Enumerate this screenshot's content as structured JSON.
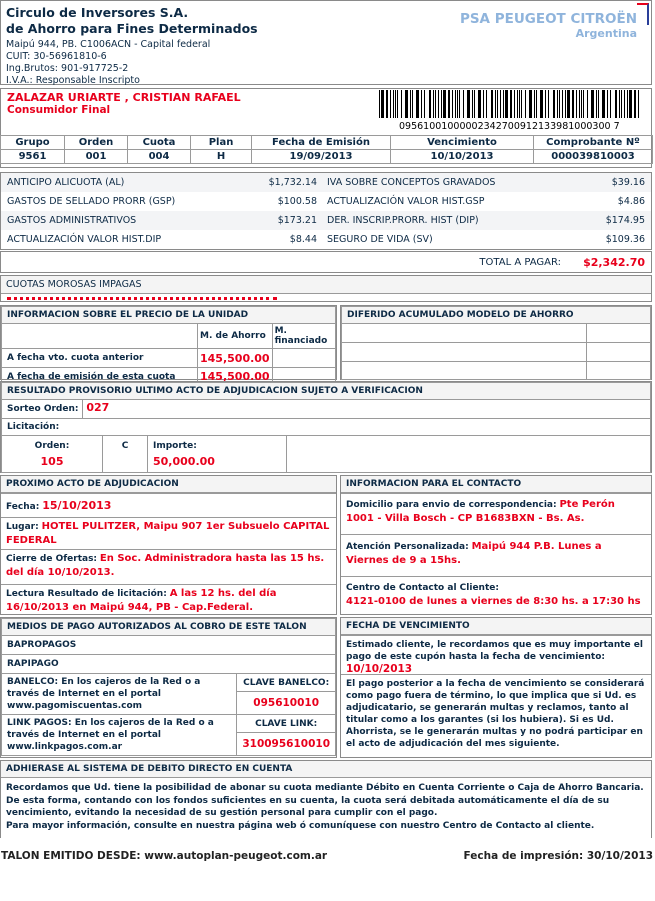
{
  "issuer": {
    "name1": "Circulo de Inversores S.A.",
    "name2": "de Ahorro para Fines Determinados",
    "address": "Maipú 944, PB. C1006ACN - Capital federal",
    "cuit": "CUIT: 30-56961810-6",
    "ing_brutos": "Ing.Brutos: 901-917725-2",
    "iva": "I.V.A.: Responsable Inscripto"
  },
  "logo": {
    "line1": "PSA PEUGEOT CITROËN",
    "line2": "Argentina",
    "color": "#8fb4dc"
  },
  "client": {
    "name": "ZALAZAR URIARTE , CRISTIAN RAFAEL",
    "category": "Consumidor Final",
    "barcode": "09561001000002342700912133981000300 7"
  },
  "summary": {
    "headers": [
      "Grupo",
      "Orden",
      "Cuota",
      "Plan",
      "Fecha de Emisión",
      "Vencimiento",
      "Comprobante Nº"
    ],
    "values": [
      "9561",
      "001",
      "004",
      "H",
      "19/09/2013",
      "10/10/2013",
      "000039810003"
    ]
  },
  "charges": [
    {
      "l_label": "ANTICIPO ALICUOTA (AL)",
      "l_value": "$1,732.14",
      "r_label": "IVA SOBRE CONCEPTOS GRAVADOS",
      "r_value": "$39.16"
    },
    {
      "l_label": "GASTOS DE SELLADO PRORR (GSP)",
      "l_value": "$100.58",
      "r_label": "ACTUALIZACIÓN VALOR HIST.GSP",
      "r_value": "$4.86"
    },
    {
      "l_label": "GASTOS ADMINISTRATIVOS",
      "l_value": "$173.21",
      "r_label": "DER. INSCRIP.PRORR. HIST (DIP)",
      "r_value": "$174.95"
    },
    {
      "l_label": "ACTUALIZACIÓN VALOR HIST.DIP",
      "l_value": "$8.44",
      "r_label": "SEGURO DE VIDA (SV)",
      "r_value": "$109.36"
    }
  ],
  "total": {
    "label": "TOTAL A PAGAR:",
    "value": "$2,342.70"
  },
  "morosas": {
    "title": "CUOTAS MOROSAS IMPAGAS"
  },
  "precio": {
    "title": "INFORMACION SOBRE EL PRECIO DE LA UNIDAD",
    "col1": "M. de Ahorro",
    "col2": "M. financiado",
    "rows": [
      {
        "label": "A fecha vto. cuota anterior",
        "value": "145,500.00"
      },
      {
        "label": "A fecha de emisión de esta cuota",
        "value": "145,500.00"
      }
    ]
  },
  "diferido": {
    "title": "DIFERIDO ACUMULADO MODELO DE AHORRO"
  },
  "resultado": {
    "title": "RESULTADO PROVISORIO ULTIMO ACTO DE ADJUDICACION SUJETO A VERIFICACION",
    "sorteo_label": "Sorteo Orden:",
    "sorteo_value": "027",
    "licitacion_label": "Licitación:",
    "orden_label": "Orden:",
    "orden_value": "105",
    "c_label": "C",
    "importe_label": "Importe:",
    "importe_value": "50,000.00"
  },
  "proximo": {
    "title": "PROXIMO ACTO DE ADJUDICACION",
    "fecha_label": "Fecha:",
    "fecha_value": "15/10/2013",
    "lugar_label": "Lugar:",
    "lugar_value": "HOTEL PULITZER, Maipu 907 1er Subsuelo CAPITAL FEDERAL",
    "cierre_label": "Cierre de Ofertas:",
    "cierre_value": "En Soc. Administradora hasta las 15 hs. del día 10/10/2013.",
    "lectura_label": "Lectura Resultado de licitación:",
    "lectura_value": "A las 12 hs. del día 16/10/2013 en Maipú 944, PB - Cap.Federal."
  },
  "contacto": {
    "title": "INFORMACION PARA EL CONTACTO",
    "domicilio_label": "Domicilio para envio de correspondencia:",
    "domicilio_value": "Pte Perón 1001 - Villa Bosch - CP B1683BXN - Bs. As.",
    "atencion_label": "Atención Personalizada:",
    "atencion_value": "Maipú 944 P.B. Lunes a Viernes de 9 a 15hs.",
    "centro_label": "Centro de Contacto al Cliente:",
    "centro_value": "4121-0100 de lunes a viernes de 8:30 hs. a 17:30 hs"
  },
  "medios": {
    "title": "MEDIOS DE PAGO AUTORIZADOS AL COBRO DE ESTE TALON",
    "item1": "BAPROPAGOS",
    "item2": "RAPIPAGO",
    "banelco_text": "BANELCO: En los cajeros de la Red o a través de Internet en el portal www.pagomiscuentas.com",
    "banelco_key_label": "CLAVE BANELCO:",
    "banelco_key": "095610010",
    "link_text": "LINK PAGOS: En los cajeros de la Red o a través de Internet en el portal www.linkpagos.com.ar",
    "link_key_label": "CLAVE LINK:",
    "link_key": "310095610010"
  },
  "vencimiento": {
    "title": "FECHA DE VENCIMIENTO",
    "text1": "Estimado cliente, le recordamos que es muy importante el pago de este cupón hasta la fecha de vencimiento:",
    "date": "10/10/2013",
    "text2": "El pago posterior a la fecha de vencimiento se considerará como pago fuera de término, lo que implica que si Ud. es adjudicatario, se generarán multas y reclamos, tanto al titular como a los garantes (si los hubiera). Si es Ud. Ahorrista, se le generarán multas y no podrá participar en el acto de adjudicación del mes siguiente."
  },
  "debito": {
    "title": "ADHIERASE AL SISTEMA DE DEBITO DIRECTO EN CUENTA",
    "line1": "Recordamos que Ud. tiene la posibilidad de abonar su cuota mediante Débito en Cuenta Corriente o Caja de Ahorro Bancaria.",
    "line2": "De esta forma, contando con los fondos suficientes en su cuenta, la cuota será debitada automáticamente el día de su vencimiento, evitando la necesidad de su gestión personal para cumplir con el pago.",
    "line3": "Para mayor información, consulte en nuestra página web ó comuníquese con nuestro Centro de Contacto al cliente."
  },
  "footer": {
    "left": "TALON EMITIDO DESDE: www.autoplan-peugeot.com.ar",
    "right": "Fecha de impresión: 30/10/2013"
  }
}
